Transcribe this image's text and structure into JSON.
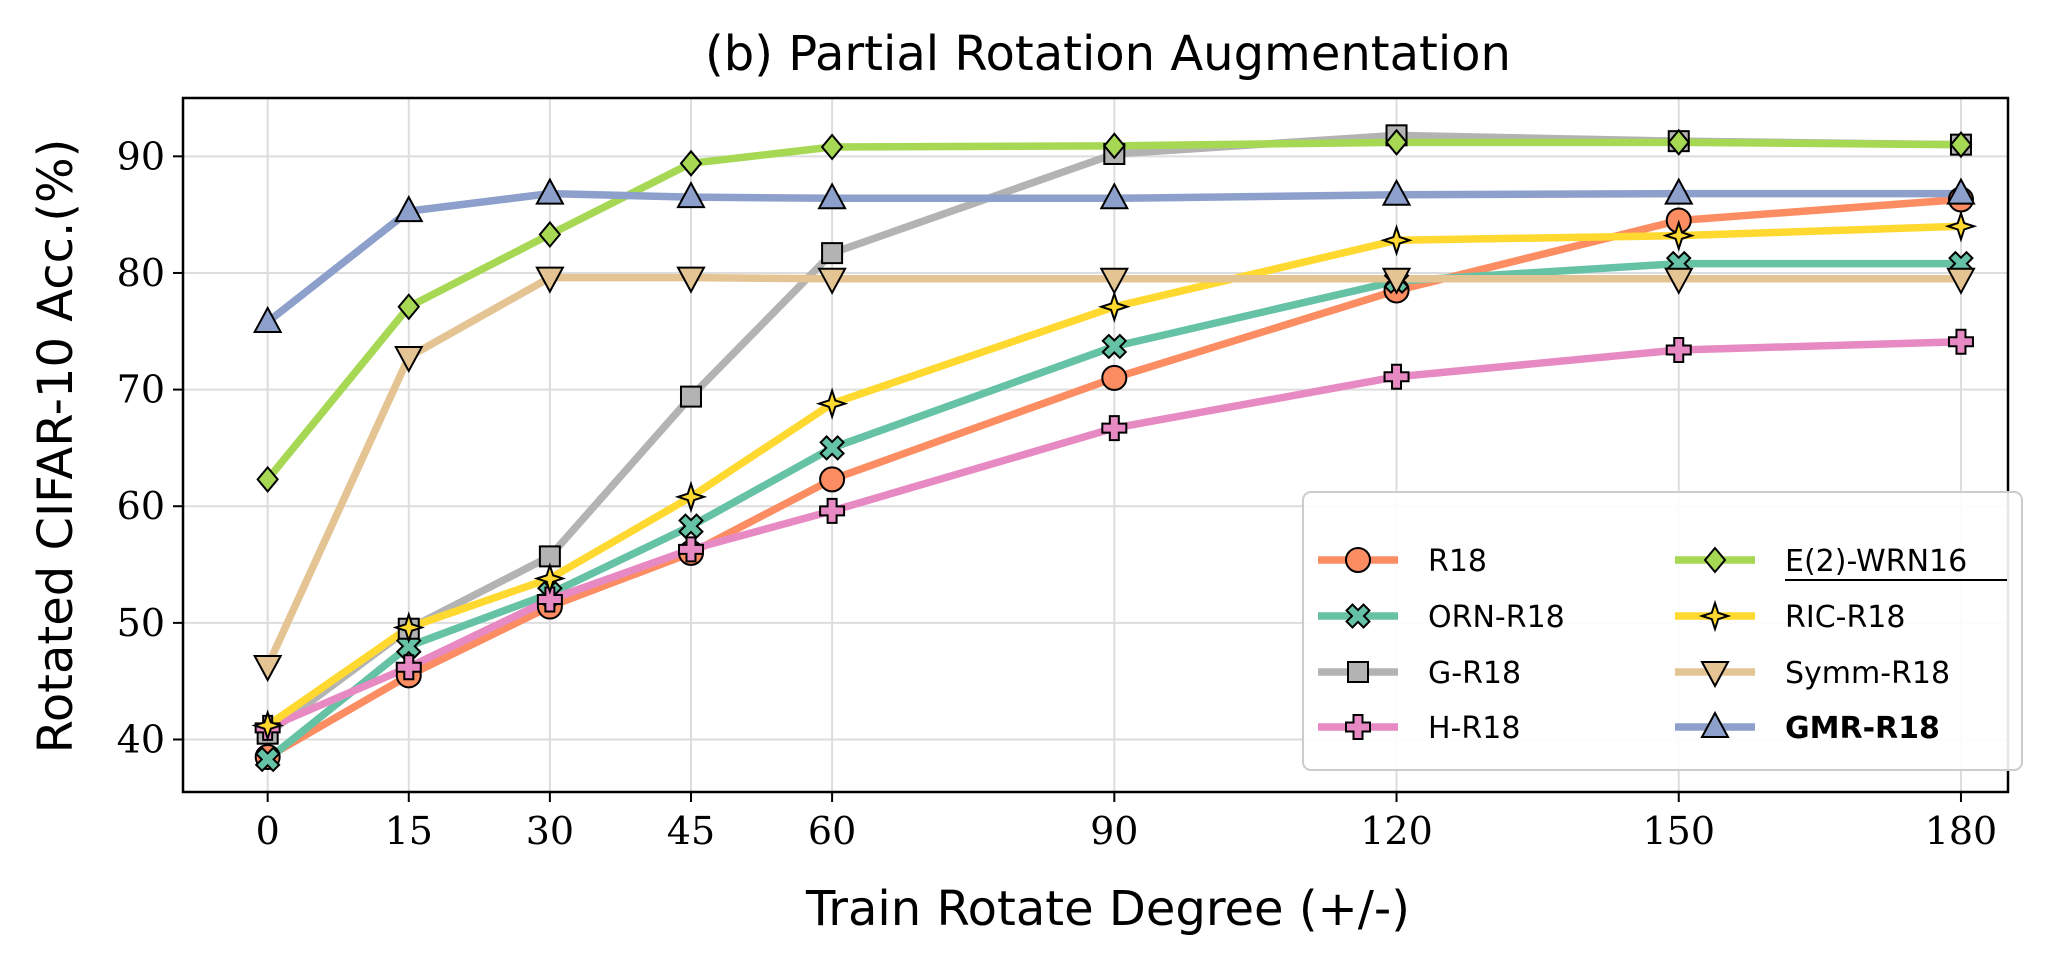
{
  "chart_data": {
    "type": "line",
    "title": "(b) Partial Rotation Augmentation",
    "xlabel": "Train Rotate Degree (+/-)",
    "ylabel": "Rotated CIFAR-10 Acc.(%)",
    "x": [
      0,
      15,
      30,
      45,
      60,
      90,
      120,
      150,
      180
    ],
    "xticks": [
      "0",
      "15",
      "30",
      "45",
      "60",
      "90",
      "120",
      "150",
      "180"
    ],
    "yticks": [
      "40",
      "50",
      "60",
      "70",
      "80",
      "90"
    ],
    "ylim": [
      35.5,
      95
    ],
    "xlim": [
      -9,
      185
    ],
    "grid": true,
    "legend_position": "lower-right",
    "series": [
      {
        "name": "R18",
        "color": "#fc8d62",
        "marker": "circle",
        "values": [
          38.5,
          45.5,
          51.4,
          56.0,
          62.3,
          71.0,
          78.5,
          84.5,
          86.3
        ]
      },
      {
        "name": "ORN-R18",
        "color": "#66c2a5",
        "marker": "x",
        "values": [
          38.3,
          48.0,
          52.5,
          58.3,
          65.0,
          73.7,
          79.3,
          80.8,
          80.8
        ]
      },
      {
        "name": "G-R18",
        "color": "#b3b3b3",
        "marker": "square",
        "values": [
          40.5,
          49.5,
          55.7,
          69.4,
          81.7,
          90.2,
          91.8,
          91.3,
          91.0
        ]
      },
      {
        "name": "H-R18",
        "color": "#e78ac3",
        "marker": "plus",
        "values": [
          41.0,
          46.2,
          52.0,
          56.3,
          59.6,
          66.7,
          71.1,
          73.4,
          74.1
        ]
      },
      {
        "name": "E(2)-WRN16",
        "color": "#a6d854",
        "marker": "diamond",
        "values": [
          62.3,
          77.1,
          83.3,
          89.4,
          90.8,
          90.9,
          91.2,
          91.2,
          91.0
        ]
      },
      {
        "name": "RIC-R18",
        "color": "#ffd92f",
        "marker": "star",
        "values": [
          41.2,
          49.6,
          53.8,
          60.8,
          68.8,
          77.1,
          82.8,
          83.2,
          84.0
        ]
      },
      {
        "name": "Symm-R18",
        "color": "#e5c494",
        "marker": "triangle-down",
        "values": [
          46.3,
          72.8,
          79.6,
          79.6,
          79.5,
          79.5,
          79.5,
          79.5,
          79.5
        ]
      },
      {
        "name": "GMR-R18",
        "color": "#8da0cb",
        "marker": "triangle-up",
        "values": [
          75.8,
          85.3,
          86.8,
          86.5,
          86.4,
          86.4,
          86.7,
          86.8,
          86.8
        ]
      }
    ]
  }
}
